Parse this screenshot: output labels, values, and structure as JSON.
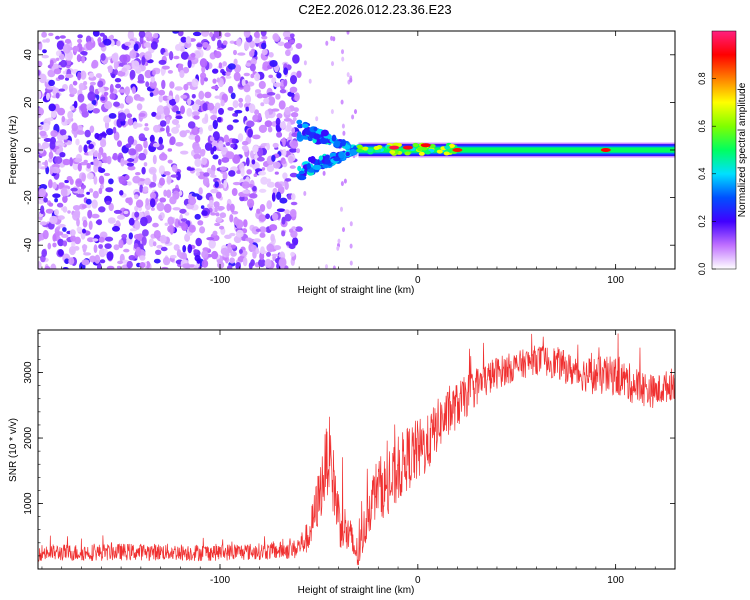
{
  "page_title": "C2E2.2026.012.23.36.E23",
  "colors": {
    "snr_line": "#f03030",
    "axis": "#000000",
    "background": "#ffffff"
  },
  "chart_data": [
    {
      "type": "heatmap",
      "title": "C2E2.2026.012.23.36.E23",
      "xlabel": "Height of straight line (km)",
      "ylabel": "Frequency (Hz)",
      "xlim": [
        -192,
        130
      ],
      "ylim": [
        -50,
        50
      ],
      "x_ticks": [
        -100,
        0,
        100
      ],
      "x_tick_labels": [
        "-100",
        "0",
        "100"
      ],
      "y_ticks": [
        -40,
        -20,
        0,
        20,
        40
      ],
      "y_tick_labels": [
        "-40",
        "-20",
        "0",
        "20",
        "40"
      ],
      "colorbar": {
        "label": "Normalized spectral amplitude",
        "range": [
          0,
          1
        ],
        "ticks": [
          0.0,
          0.2,
          0.4,
          0.6,
          0.8
        ],
        "tick_labels": [
          "0.0",
          "0.2",
          "0.4",
          "0.6",
          "0.8"
        ],
        "colormap": [
          "#ffffff",
          "#c070ff",
          "#4000ff",
          "#0050ff",
          "#00e0ff",
          "#00ff60",
          "#80ff00",
          "#ffff00",
          "#ff8000",
          "#ff0000",
          "#ff2080"
        ]
      },
      "regions": [
        {
          "name": "noise",
          "x_range": [
            -192,
            -60
          ],
          "freq_range": [
            -50,
            50
          ],
          "amplitude": 0.15
        },
        {
          "name": "transition",
          "x_range": [
            -60,
            -30
          ],
          "freq_range": [
            -12,
            12
          ],
          "amplitude": 0.35
        },
        {
          "name": "carrier",
          "x_range": [
            -30,
            130
          ],
          "center_freq": 0,
          "half_width_hz": 2.5,
          "amplitude": 0.5
        }
      ],
      "hotspots": [
        {
          "x": -12,
          "freq": 1,
          "amplitude": 0.95
        },
        {
          "x": -5,
          "freq": 1,
          "amplitude": 0.92
        },
        {
          "x": 4,
          "freq": 2,
          "amplitude": 0.9
        },
        {
          "x": 20,
          "freq": 0,
          "amplitude": 0.88
        },
        {
          "x": 95,
          "freq": 0,
          "amplitude": 0.9
        }
      ]
    },
    {
      "type": "line",
      "xlabel": "Height of straight line (km)",
      "ylabel": "SNR (10 * v/v)",
      "xlim": [
        -192,
        130
      ],
      "ylim": [
        0,
        3650
      ],
      "x_ticks": [
        -100,
        0,
        100
      ],
      "x_tick_labels": [
        "-100",
        "0",
        "100"
      ],
      "y_ticks": [
        1000,
        2000,
        3000
      ],
      "y_tick_labels": [
        "1000",
        "2000",
        "3000"
      ],
      "series": [
        {
          "name": "SNR",
          "x": [
            -192,
            -170,
            -150,
            -130,
            -110,
            -90,
            -75,
            -62,
            -55,
            -50,
            -45,
            -40,
            -35,
            -30,
            -25,
            -20,
            -15,
            -10,
            -5,
            0,
            5,
            10,
            20,
            30,
            40,
            50,
            60,
            70,
            80,
            90,
            100,
            110,
            120,
            130
          ],
          "y": [
            250,
            250,
            260,
            260,
            250,
            260,
            270,
            300,
            500,
            1100,
            1800,
            800,
            500,
            200,
            900,
            1300,
            1200,
            1500,
            1700,
            1800,
            1900,
            2200,
            2500,
            2800,
            3000,
            3100,
            3200,
            3150,
            3000,
            2950,
            2950,
            2800,
            2700,
            2850
          ],
          "spread": [
            260,
            260,
            260,
            260,
            260,
            260,
            260,
            300,
            500,
            900,
            1200,
            900,
            700,
            500,
            800,
            900,
            1000,
            1000,
            1000,
            1000,
            900,
            800,
            700,
            600,
            500,
            450,
            450,
            500,
            500,
            600,
            600,
            600,
            500,
            500
          ]
        }
      ]
    }
  ]
}
